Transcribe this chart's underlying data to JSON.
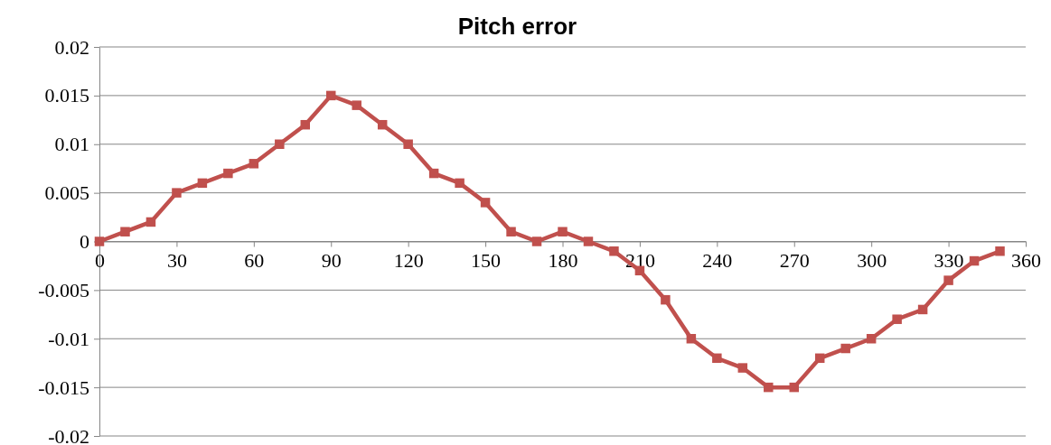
{
  "chart_data": {
    "type": "line",
    "title": "Pitch error",
    "x": [
      0,
      10,
      20,
      30,
      40,
      50,
      60,
      70,
      80,
      90,
      100,
      110,
      120,
      130,
      140,
      150,
      160,
      170,
      180,
      190,
      200,
      210,
      220,
      230,
      240,
      250,
      260,
      270,
      280,
      290,
      300,
      310,
      320,
      330,
      340,
      350
    ],
    "series": [
      {
        "color": "#c0504d",
        "values": [
          0,
          0.001,
          0.002,
          0.005,
          0.006,
          0.007,
          0.008,
          0.01,
          0.012,
          0.015,
          0.014,
          0.012,
          0.01,
          0.007,
          0.006,
          0.004,
          0.001,
          0,
          0.001,
          0,
          -0.001,
          -0.003,
          -0.006,
          -0.01,
          -0.012,
          -0.013,
          -0.015,
          -0.015,
          -0.012,
          -0.011,
          -0.01,
          -0.008,
          -0.007,
          -0.004,
          -0.002,
          -0.001
        ]
      }
    ],
    "xlim": [
      0,
      360
    ],
    "xticks": [
      0,
      30,
      60,
      90,
      120,
      150,
      180,
      210,
      240,
      270,
      300,
      330,
      360
    ],
    "ylim": [
      -0.02,
      0.02
    ],
    "yticks": [
      -0.02,
      -0.015,
      -0.01,
      -0.005,
      0,
      0.005,
      0.01,
      0.015,
      0.02
    ],
    "grid": "y",
    "marker": "square",
    "line_style": "solid"
  }
}
